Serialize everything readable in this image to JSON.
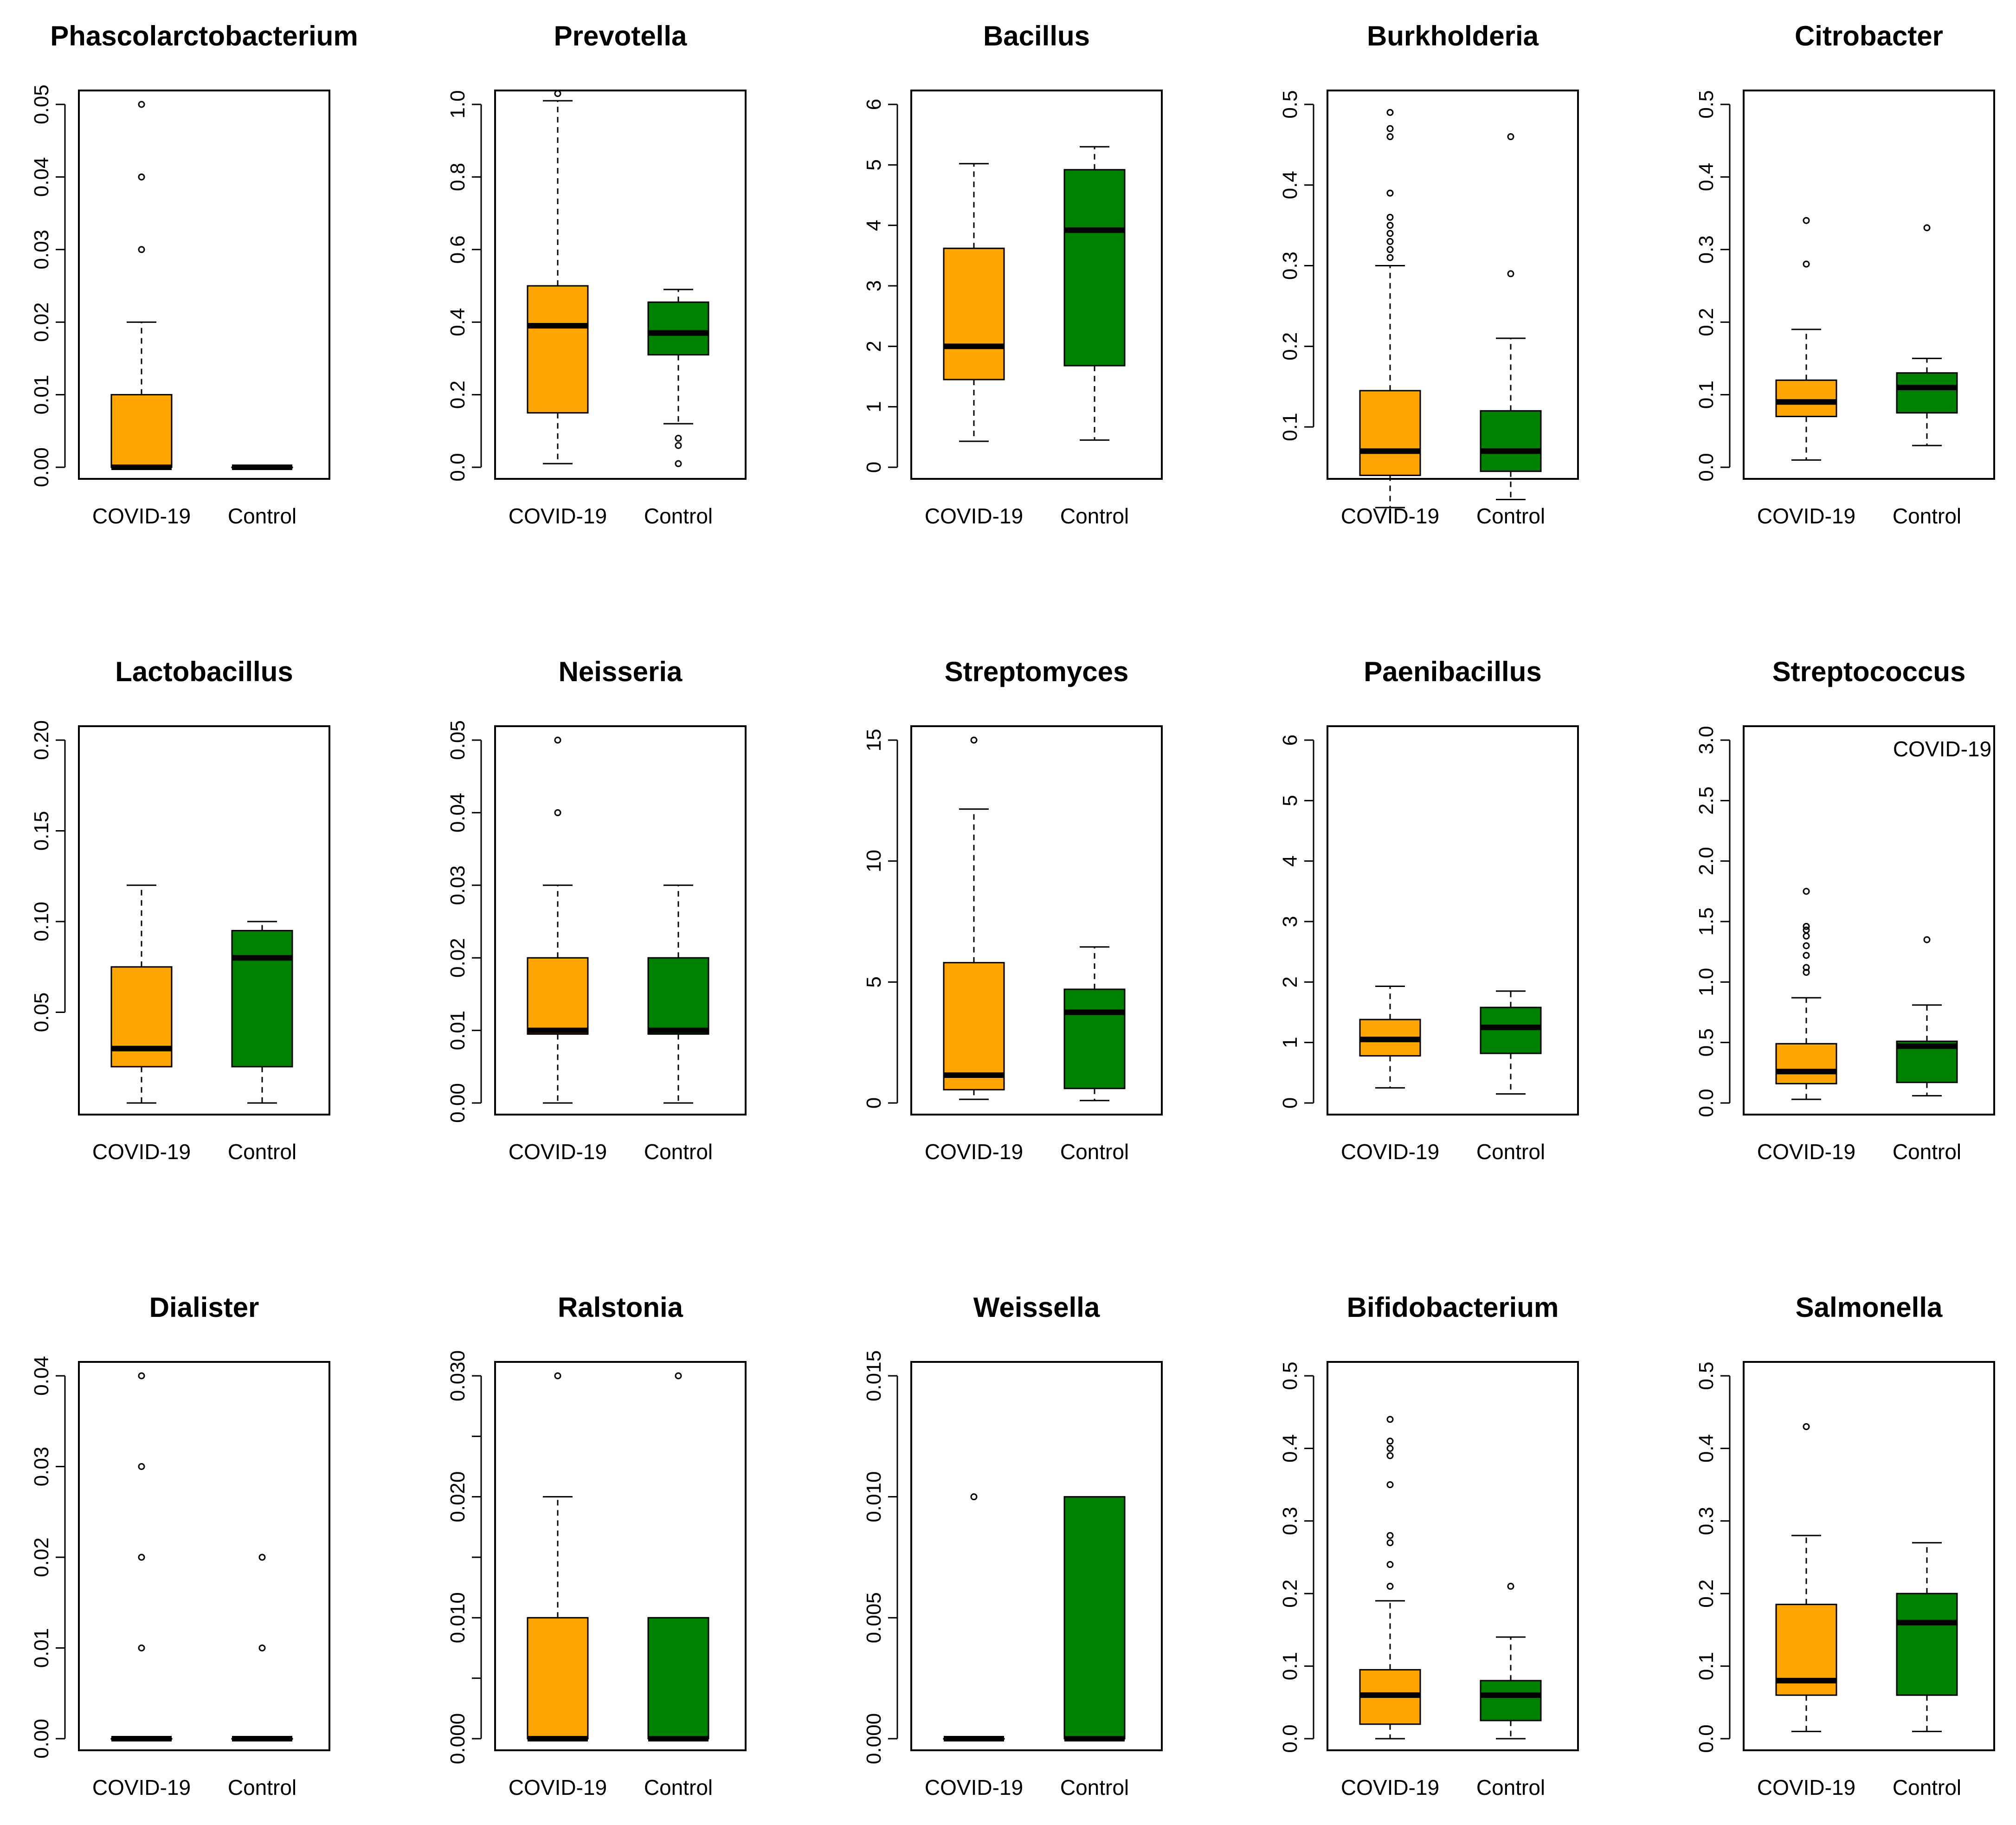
{
  "colors": {
    "covid": "#FFA500",
    "control": "#008000",
    "line": "#000000"
  },
  "chart_data": [
    {
      "type": "box",
      "title": "Phascolarctobacterium",
      "groups": [
        "COVID-19",
        "Control"
      ],
      "ylim": [
        0,
        0.05
      ],
      "yticks": [
        0,
        0.01,
        0.02,
        0.03,
        0.04,
        0.05
      ],
      "ytick_labels": [
        "0.00",
        "0.01",
        "0.02",
        "0.03",
        "0.04",
        "0.05"
      ],
      "boxes": [
        {
          "group": "COVID-19",
          "whisker_low": 0,
          "q1": 0,
          "median": 0,
          "q3": 0.01,
          "whisker_high": 0.02,
          "outliers": [
            0.03,
            0.04,
            0.05
          ]
        },
        {
          "group": "Control",
          "whisker_low": 0,
          "q1": 0,
          "median": 0,
          "q3": 0,
          "whisker_high": 0,
          "outliers": []
        }
      ]
    },
    {
      "type": "box",
      "title": "Prevotella",
      "groups": [
        "COVID-19",
        "Control"
      ],
      "ylim": [
        0,
        1.0
      ],
      "yticks": [
        0,
        0.2,
        0.4,
        0.6,
        0.8,
        1.0
      ],
      "ytick_labels": [
        "0.0",
        "0.2",
        "0.4",
        "0.6",
        "0.8",
        "1.0"
      ],
      "boxes": [
        {
          "group": "COVID-19",
          "whisker_low": 0.01,
          "q1": 0.15,
          "median": 0.39,
          "q3": 0.5,
          "whisker_high": 1.01,
          "outliers": [
            1.03
          ]
        },
        {
          "group": "Control",
          "whisker_low": 0.12,
          "q1": 0.31,
          "median": 0.37,
          "q3": 0.455,
          "whisker_high": 0.49,
          "outliers": [
            0.01,
            0.06,
            0.08
          ]
        }
      ]
    },
    {
      "type": "box",
      "title": "Bacillus",
      "groups": [
        "COVID-19",
        "Control"
      ],
      "ylim": [
        0,
        6
      ],
      "yticks": [
        0,
        1,
        2,
        3,
        4,
        5,
        6
      ],
      "ytick_labels": [
        "0",
        "1",
        "2",
        "3",
        "4",
        "5",
        "6"
      ],
      "boxes": [
        {
          "group": "COVID-19",
          "whisker_low": 0.43,
          "q1": 1.45,
          "median": 2.0,
          "q3": 3.62,
          "whisker_high": 5.02,
          "outliers": []
        },
        {
          "group": "Control",
          "whisker_low": 0.45,
          "q1": 1.68,
          "median": 3.92,
          "q3": 4.92,
          "whisker_high": 5.3,
          "outliers": []
        }
      ]
    },
    {
      "type": "box",
      "title": "Burkholderia",
      "groups": [
        "COVID-19",
        "Control"
      ],
      "ylim": [
        0.05,
        0.5
      ],
      "yticks": [
        0.1,
        0.2,
        0.3,
        0.4,
        0.5
      ],
      "ytick_labels": [
        "0.1",
        "0.2",
        "0.3",
        "0.4",
        "0.5"
      ],
      "boxes": [
        {
          "group": "COVID-19",
          "whisker_low": 0.0,
          "q1": 0.04,
          "median": 0.07,
          "q3": 0.145,
          "whisker_high": 0.3,
          "outliers": [
            0.31,
            0.32,
            0.33,
            0.34,
            0.35,
            0.36,
            0.39,
            0.46,
            0.47,
            0.49
          ]
        },
        {
          "group": "Control",
          "whisker_low": 0.01,
          "q1": 0.045,
          "median": 0.07,
          "q3": 0.12,
          "whisker_high": 0.21,
          "outliers": [
            0.29,
            0.46
          ]
        }
      ]
    },
    {
      "type": "box",
      "title": "Citrobacter",
      "groups": [
        "COVID-19",
        "Control"
      ],
      "ylim": [
        0,
        0.5
      ],
      "yticks": [
        0,
        0.1,
        0.2,
        0.3,
        0.4,
        0.5
      ],
      "ytick_labels": [
        "0.0",
        "0.1",
        "0.2",
        "0.3",
        "0.4",
        "0.5"
      ],
      "boxes": [
        {
          "group": "COVID-19",
          "whisker_low": 0.01,
          "q1": 0.07,
          "median": 0.09,
          "q3": 0.12,
          "whisker_high": 0.19,
          "outliers": [
            0.28,
            0.34
          ]
        },
        {
          "group": "Control",
          "whisker_low": 0.03,
          "q1": 0.075,
          "median": 0.11,
          "q3": 0.13,
          "whisker_high": 0.15,
          "outliers": [
            0.33
          ]
        }
      ]
    },
    {
      "type": "box",
      "title": "Lactobacillus",
      "groups": [
        "COVID-19",
        "Control"
      ],
      "ylim": [
        0,
        0.2
      ],
      "yticks": [
        0.05,
        0.1,
        0.15,
        0.2
      ],
      "ytick_labels": [
        "0.05",
        "0.10",
        "0.15",
        "0.20"
      ],
      "boxes": [
        {
          "group": "COVID-19",
          "whisker_low": 0.0,
          "q1": 0.02,
          "median": 0.03,
          "q3": 0.075,
          "whisker_high": 0.12,
          "outliers": []
        },
        {
          "group": "Control",
          "whisker_low": 0.0,
          "q1": 0.02,
          "median": 0.08,
          "q3": 0.095,
          "whisker_high": 0.1,
          "outliers": []
        }
      ]
    },
    {
      "type": "box",
      "title": "Neisseria",
      "groups": [
        "COVID-19",
        "Control"
      ],
      "ylim": [
        0,
        0.05
      ],
      "yticks": [
        0,
        0.01,
        0.02,
        0.03,
        0.04,
        0.05
      ],
      "ytick_labels": [
        "0.00",
        "0.01",
        "0.02",
        "0.03",
        "0.04",
        "0.05"
      ],
      "boxes": [
        {
          "group": "COVID-19",
          "whisker_low": 0,
          "q1": 0.0095,
          "median": 0.01,
          "q3": 0.02,
          "whisker_high": 0.03,
          "outliers": [
            0.04,
            0.05
          ]
        },
        {
          "group": "Control",
          "whisker_low": 0,
          "q1": 0.0095,
          "median": 0.01,
          "q3": 0.02,
          "whisker_high": 0.03,
          "outliers": []
        }
      ]
    },
    {
      "type": "box",
      "title": "Streptomyces",
      "groups": [
        "COVID-19",
        "Control"
      ],
      "ylim": [
        0,
        15
      ],
      "yticks": [
        0,
        5,
        10,
        15
      ],
      "ytick_labels": [
        "0",
        "5",
        "10",
        "15"
      ],
      "boxes": [
        {
          "group": "COVID-19",
          "whisker_low": 0.15,
          "q1": 0.55,
          "median": 1.15,
          "q3": 5.8,
          "whisker_high": 12.15,
          "outliers": [
            15
          ]
        },
        {
          "group": "Control",
          "whisker_low": 0.1,
          "q1": 0.6,
          "median": 3.75,
          "q3": 4.7,
          "whisker_high": 6.45,
          "outliers": []
        }
      ]
    },
    {
      "type": "box",
      "title": "Paenibacillus",
      "groups": [
        "COVID-19",
        "Control"
      ],
      "ylim": [
        0,
        6
      ],
      "yticks": [
        0,
        1,
        2,
        3,
        4,
        5,
        6
      ],
      "ytick_labels": [
        "0",
        "1",
        "2",
        "3",
        "4",
        "5",
        "6"
      ],
      "boxes": [
        {
          "group": "COVID-19",
          "whisker_low": 0.25,
          "q1": 0.78,
          "median": 1.05,
          "q3": 1.38,
          "whisker_high": 1.93,
          "outliers": []
        },
        {
          "group": "Control",
          "whisker_low": 0.15,
          "q1": 0.82,
          "median": 1.25,
          "q3": 1.58,
          "whisker_high": 1.85,
          "outliers": []
        }
      ]
    },
    {
      "type": "box",
      "title": "Streptococcus",
      "groups": [
        "COVID-19",
        "Control"
      ],
      "ylim": [
        0,
        3.0
      ],
      "yticks": [
        0,
        0.5,
        1.0,
        1.5,
        2.0,
        2.5,
        3.0
      ],
      "ytick_labels": [
        "0.0",
        "0.5",
        "1.0",
        "1.5",
        "2.0",
        "2.5",
        "3.0"
      ],
      "annotation": "COVID-19",
      "boxes": [
        {
          "group": "COVID-19",
          "whisker_low": 0.03,
          "q1": 0.16,
          "median": 0.26,
          "q3": 0.49,
          "whisker_high": 0.87,
          "outliers": [
            1.08,
            1.12,
            1.22,
            1.3,
            1.38,
            1.43,
            1.46,
            1.75
          ]
        },
        {
          "group": "Control",
          "whisker_low": 0.06,
          "q1": 0.17,
          "median": 0.47,
          "q3": 0.51,
          "whisker_high": 0.81,
          "outliers": [
            1.35
          ]
        }
      ]
    },
    {
      "type": "box",
      "title": "Dialister",
      "groups": [
        "COVID-19",
        "Control"
      ],
      "ylim": [
        0,
        0.04
      ],
      "yticks": [
        0,
        0.01,
        0.02,
        0.03,
        0.04
      ],
      "ytick_labels": [
        "0.00",
        "0.01",
        "0.02",
        "0.03",
        "0.04"
      ],
      "boxes": [
        {
          "group": "COVID-19",
          "whisker_low": 0,
          "q1": 0,
          "median": 0,
          "q3": 0,
          "whisker_high": 0,
          "outliers": [
            0.01,
            0.02,
            0.03,
            0.04
          ]
        },
        {
          "group": "Control",
          "whisker_low": 0,
          "q1": 0,
          "median": 0,
          "q3": 0,
          "whisker_high": 0,
          "outliers": [
            0.01,
            0.02
          ]
        }
      ]
    },
    {
      "type": "box",
      "title": "Ralstonia",
      "groups": [
        "COVID-19",
        "Control"
      ],
      "ylim": [
        0,
        0.03
      ],
      "yticks": [
        0,
        0.005,
        0.01,
        0.015,
        0.02,
        0.025,
        0.03
      ],
      "ytick_labels": [
        "0.000",
        "",
        "0.010",
        "",
        "0.020",
        "",
        "0.030"
      ],
      "boxes": [
        {
          "group": "COVID-19",
          "whisker_low": 0,
          "q1": 0,
          "median": 0,
          "q3": 0.01,
          "whisker_high": 0.02,
          "outliers": [
            0.03
          ]
        },
        {
          "group": "Control",
          "whisker_low": 0,
          "q1": 0,
          "median": 0,
          "q3": 0.01,
          "whisker_high": 0.01,
          "outliers": [
            0.03
          ]
        }
      ]
    },
    {
      "type": "box",
      "title": "Weissella",
      "groups": [
        "COVID-19",
        "Control"
      ],
      "ylim": [
        0,
        0.015
      ],
      "yticks": [
        0,
        0.005,
        0.01,
        0.015
      ],
      "ytick_labels": [
        "0.000",
        "0.005",
        "0.010",
        "0.015"
      ],
      "boxes": [
        {
          "group": "COVID-19",
          "whisker_low": 0,
          "q1": 0,
          "median": 0,
          "q3": 0,
          "whisker_high": 0,
          "outliers": [
            0.01
          ]
        },
        {
          "group": "Control",
          "whisker_low": 0,
          "q1": 0,
          "median": 0,
          "q3": 0.01,
          "whisker_high": 0.01,
          "outliers": []
        }
      ]
    },
    {
      "type": "box",
      "title": "Bifidobacterium",
      "groups": [
        "COVID-19",
        "Control"
      ],
      "ylim": [
        0,
        0.5
      ],
      "yticks": [
        0,
        0.1,
        0.2,
        0.3,
        0.4,
        0.5
      ],
      "ytick_labels": [
        "0.0",
        "0.1",
        "0.2",
        "0.3",
        "0.4",
        "0.5"
      ],
      "boxes": [
        {
          "group": "COVID-19",
          "whisker_low": 0,
          "q1": 0.02,
          "median": 0.06,
          "q3": 0.095,
          "whisker_high": 0.19,
          "outliers": [
            0.21,
            0.24,
            0.27,
            0.28,
            0.35,
            0.39,
            0.4,
            0.41,
            0.44
          ]
        },
        {
          "group": "Control",
          "whisker_low": 0,
          "q1": 0.025,
          "median": 0.06,
          "q3": 0.08,
          "whisker_high": 0.14,
          "outliers": [
            0.21
          ]
        }
      ]
    },
    {
      "type": "box",
      "title": "Salmonella",
      "groups": [
        "COVID-19",
        "Control"
      ],
      "ylim": [
        0,
        0.5
      ],
      "yticks": [
        0,
        0.1,
        0.2,
        0.3,
        0.4,
        0.5
      ],
      "ytick_labels": [
        "0.0",
        "0.1",
        "0.2",
        "0.3",
        "0.4",
        "0.5"
      ],
      "boxes": [
        {
          "group": "COVID-19",
          "whisker_low": 0.01,
          "q1": 0.06,
          "median": 0.08,
          "q3": 0.185,
          "whisker_high": 0.28,
          "outliers": [
            0.43
          ]
        },
        {
          "group": "Control",
          "whisker_low": 0.01,
          "q1": 0.06,
          "median": 0.16,
          "q3": 0.2,
          "whisker_high": 0.27,
          "outliers": []
        }
      ]
    }
  ]
}
